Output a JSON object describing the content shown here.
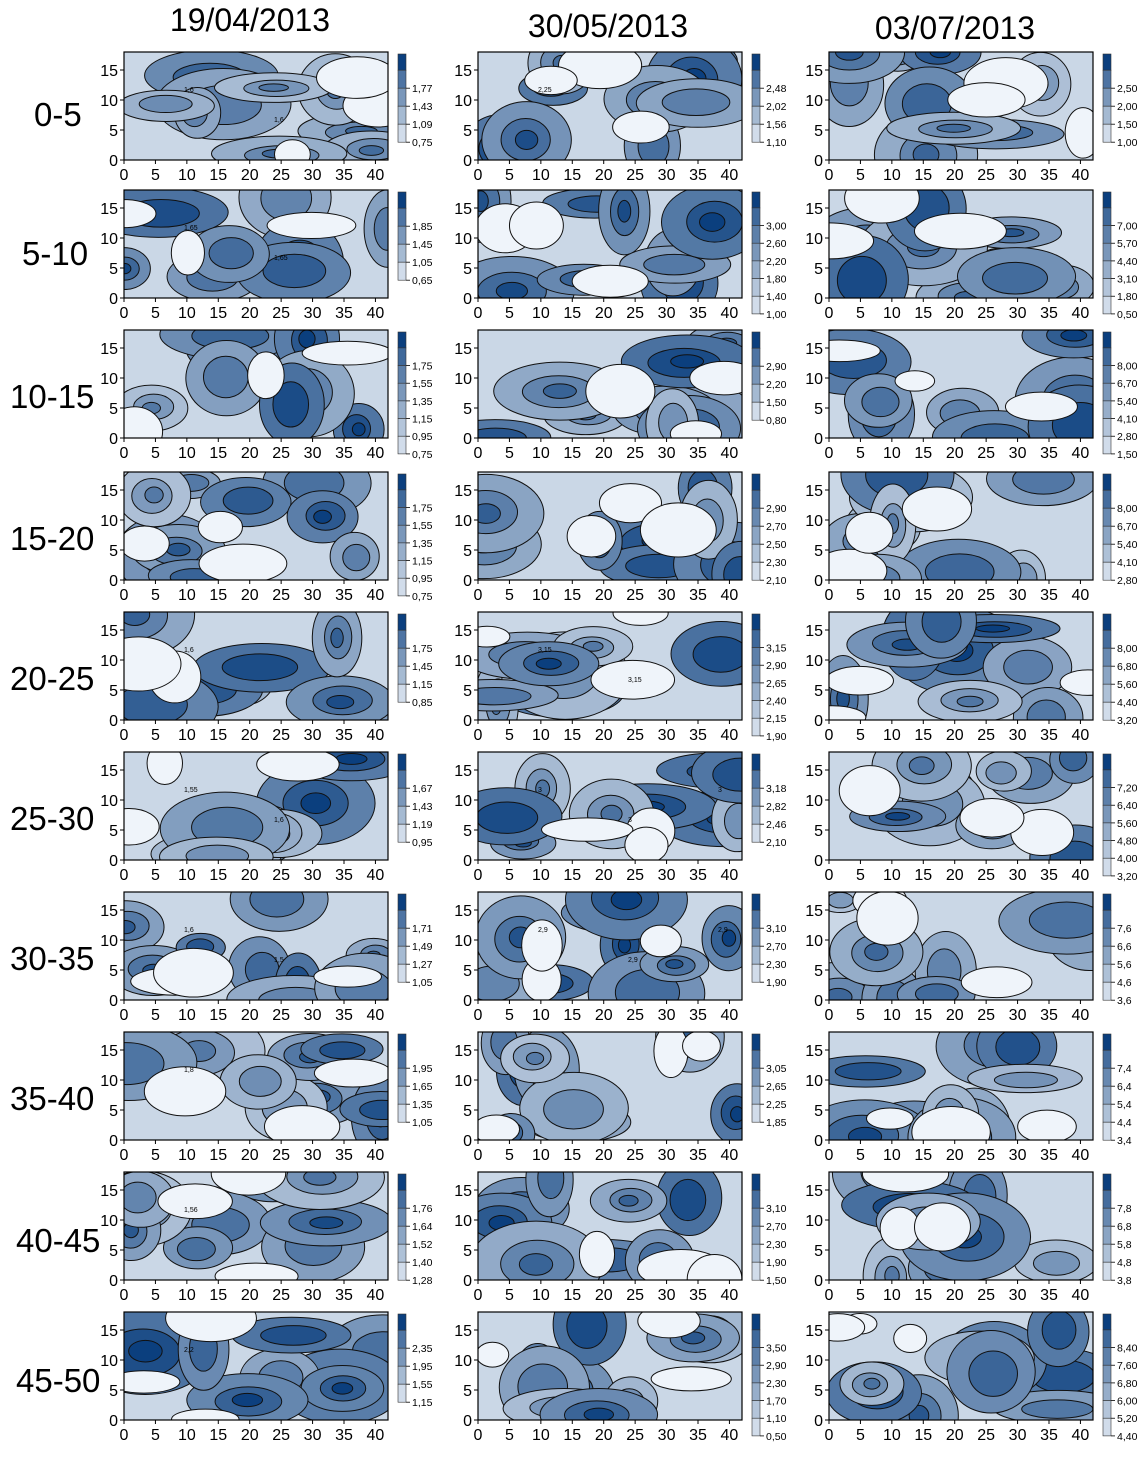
{
  "columns": [
    "19/04/2013",
    "30/05/2013",
    "03/07/2013"
  ],
  "rows": [
    "0-5",
    "5-10",
    "10-15",
    "15-20",
    "20-25",
    "25-30",
    "30-35",
    "35-40",
    "40-45",
    "45-50"
  ],
  "colors": {
    "light": "#f4f8fd",
    "dark": "#0b3f7e",
    "line": "#111111"
  },
  "chart_data": {
    "type": "heatmap",
    "xlim": [
      0,
      42
    ],
    "ylim": [
      0,
      18
    ],
    "x_ticks": [
      "0",
      "5",
      "10",
      "15",
      "20",
      "25",
      "30",
      "35",
      "40"
    ],
    "y_ticks": [
      "0",
      "5",
      "10",
      "15"
    ],
    "panels": [
      [
        {
          "legend": [
            "1,77",
            "1,43",
            "1,09",
            "0,75"
          ],
          "min": 0.75,
          "max": 2.0,
          "contours": [
            "1,6",
            "1,6"
          ]
        },
        {
          "legend": [
            "2,48",
            "2,02",
            "1,56",
            "1,10"
          ],
          "min": 1.1,
          "max": 2.8,
          "contours": [
            "2,25"
          ]
        },
        {
          "legend": [
            "2,50",
            "2,00",
            "1,50",
            "1,00"
          ],
          "min": 1.0,
          "max": 2.75,
          "contours": []
        }
      ],
      [
        {
          "legend": [
            "1,85",
            "1,45",
            "1,05",
            "0,65"
          ],
          "min": 0.65,
          "max": 2.05,
          "contours": [
            "1,65",
            "1,65"
          ]
        },
        {
          "legend": [
            "3,00",
            "2,60",
            "2,20",
            "1,80",
            "1,40",
            "1,00"
          ],
          "min": 1.0,
          "max": 3.2,
          "contours": []
        },
        {
          "legend": [
            "7,00",
            "5,70",
            "4,40",
            "3,10",
            "1,80",
            "0,50"
          ],
          "min": 0.5,
          "max": 7.6,
          "contours": []
        }
      ],
      [
        {
          "legend": [
            "1,75",
            "1,55",
            "1,35",
            "1,15",
            "0,95",
            "0,75"
          ],
          "min": 0.75,
          "max": 1.9,
          "contours": []
        },
        {
          "legend": [
            "2,90",
            "2,20",
            "1,50",
            "0,80"
          ],
          "min": 0.8,
          "max": 3.5,
          "contours": []
        },
        {
          "legend": [
            "8,00",
            "6,70",
            "5,40",
            "4,10",
            "2,80",
            "1,50"
          ],
          "min": 1.5,
          "max": 8.6,
          "contours": []
        }
      ],
      [
        {
          "legend": [
            "1,75",
            "1,55",
            "1,35",
            "1,15",
            "0,95",
            "0,75"
          ],
          "min": 0.75,
          "max": 1.9,
          "contours": []
        },
        {
          "legend": [
            "2,90",
            "2,70",
            "2,50",
            "2,30",
            "2,10"
          ],
          "min": 2.1,
          "max": 3.05,
          "contours": []
        },
        {
          "legend": [
            "8,00",
            "6,70",
            "5,40",
            "4,10",
            "2,80"
          ],
          "min": 2.8,
          "max": 8.6,
          "contours": []
        }
      ],
      [
        {
          "legend": [
            "1,75",
            "1,45",
            "1,15",
            "0,85"
          ],
          "min": 0.85,
          "max": 1.95,
          "contours": [
            "1,6"
          ]
        },
        {
          "legend": [
            "3,15",
            "2,90",
            "2,65",
            "2,40",
            "2,15",
            "1,90"
          ],
          "min": 1.9,
          "max": 3.35,
          "contours": [
            "3,15",
            "3,15"
          ]
        },
        {
          "legend": [
            "8,00",
            "6,80",
            "5,60",
            "4,40",
            "3,20"
          ],
          "min": 3.2,
          "max": 8.6,
          "contours": []
        }
      ],
      [
        {
          "legend": [
            "1,67",
            "1,43",
            "1,19",
            "0,95"
          ],
          "min": 0.95,
          "max": 1.85,
          "contours": [
            "1,55",
            "1,6"
          ]
        },
        {
          "legend": [
            "3,18",
            "2,82",
            "2,46",
            "2,10"
          ],
          "min": 2.1,
          "max": 3.4,
          "contours": [
            "3",
            "3",
            "3"
          ]
        },
        {
          "legend": [
            "7,20",
            "6,40",
            "5,60",
            "4,80",
            "4,00",
            "3,20"
          ],
          "min": 3.2,
          "max": 7.6,
          "contours": []
        }
      ],
      [
        {
          "legend": [
            "1,71",
            "1,49",
            "1,27",
            "1,05"
          ],
          "min": 1.05,
          "max": 1.85,
          "contours": [
            "1,6",
            "1,5"
          ]
        },
        {
          "legend": [
            "3,10",
            "2,70",
            "2,30",
            "1,90"
          ],
          "min": 1.9,
          "max": 3.35,
          "contours": [
            "2,9",
            "2,9",
            "2,9"
          ]
        },
        {
          "legend": [
            "7,6",
            "6,6",
            "5,6",
            "4,6",
            "3,6"
          ],
          "min": 3.6,
          "max": 8.1,
          "contours": []
        }
      ],
      [
        {
          "legend": [
            "1,95",
            "1,65",
            "1,35",
            "1,05"
          ],
          "min": 1.05,
          "max": 2.1,
          "contours": [
            "1,8"
          ]
        },
        {
          "legend": [
            "3,05",
            "2,65",
            "2,25",
            "1,85"
          ],
          "min": 1.85,
          "max": 3.25,
          "contours": []
        },
        {
          "legend": [
            "7,4",
            "6,4",
            "5,4",
            "4,4",
            "3,4"
          ],
          "min": 3.4,
          "max": 7.9,
          "contours": []
        }
      ],
      [
        {
          "legend": [
            "1,76",
            "1,64",
            "1,52",
            "1,40",
            "1,28"
          ],
          "min": 1.28,
          "max": 1.84,
          "contours": [
            "1,56"
          ]
        },
        {
          "legend": [
            "3,10",
            "2,70",
            "2,30",
            "1,90",
            "1,50"
          ],
          "min": 1.5,
          "max": 3.3,
          "contours": []
        },
        {
          "legend": [
            "7,8",
            "6,8",
            "5,8",
            "4,8",
            "3,8"
          ],
          "min": 3.8,
          "max": 8.3,
          "contours": []
        }
      ],
      [
        {
          "legend": [
            "2,35",
            "1,95",
            "1,55",
            "1,15"
          ],
          "min": 1.15,
          "max": 2.55,
          "contours": [
            "2,2"
          ]
        },
        {
          "legend": [
            "3,50",
            "2,90",
            "2,30",
            "1,70",
            "1,10",
            "0,50"
          ],
          "min": 0.5,
          "max": 3.8,
          "contours": []
        },
        {
          "legend": [
            "8,40",
            "7,60",
            "6,80",
            "6,00",
            "5,20",
            "4,40"
          ],
          "min": 4.4,
          "max": 8.8,
          "contours": []
        }
      ]
    ]
  }
}
